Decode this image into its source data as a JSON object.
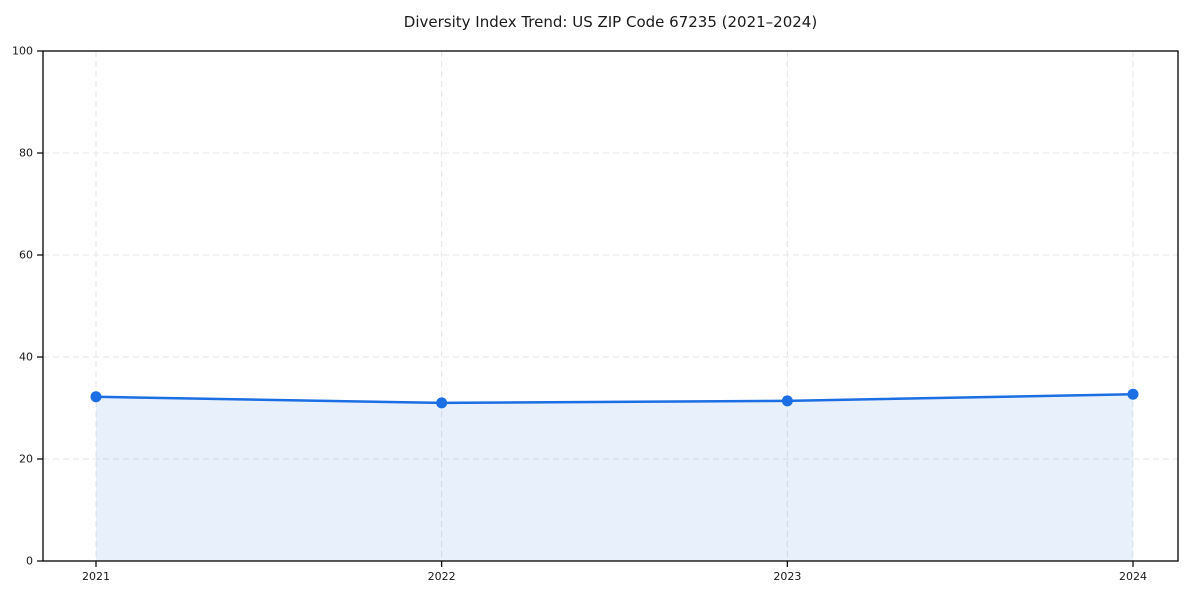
{
  "chart_data": {
    "type": "area",
    "title": "Diversity Index Trend: US ZIP Code 67235 (2021–2024)",
    "categories": [
      2021,
      2022,
      2023,
      2024
    ],
    "series": [
      {
        "name": "Diversity Index",
        "values": [
          32.2,
          31.0,
          31.4,
          32.7
        ]
      }
    ],
    "xlabel": "",
    "ylabel": "",
    "ylim": [
      0,
      100
    ],
    "yticks": [
      0,
      20,
      40,
      60,
      80,
      100
    ],
    "grid": "dashed, horizontal and vertical",
    "legend_position": "none",
    "colors": {
      "line": "#1b6ee3",
      "marker": "#1b6ee3",
      "fill": "rgba(27,110,227,0.10)",
      "grid": "#e4e4e4",
      "spine": "#000000",
      "tick_label": "#1a1a1a",
      "background": "#ffffff"
    }
  }
}
